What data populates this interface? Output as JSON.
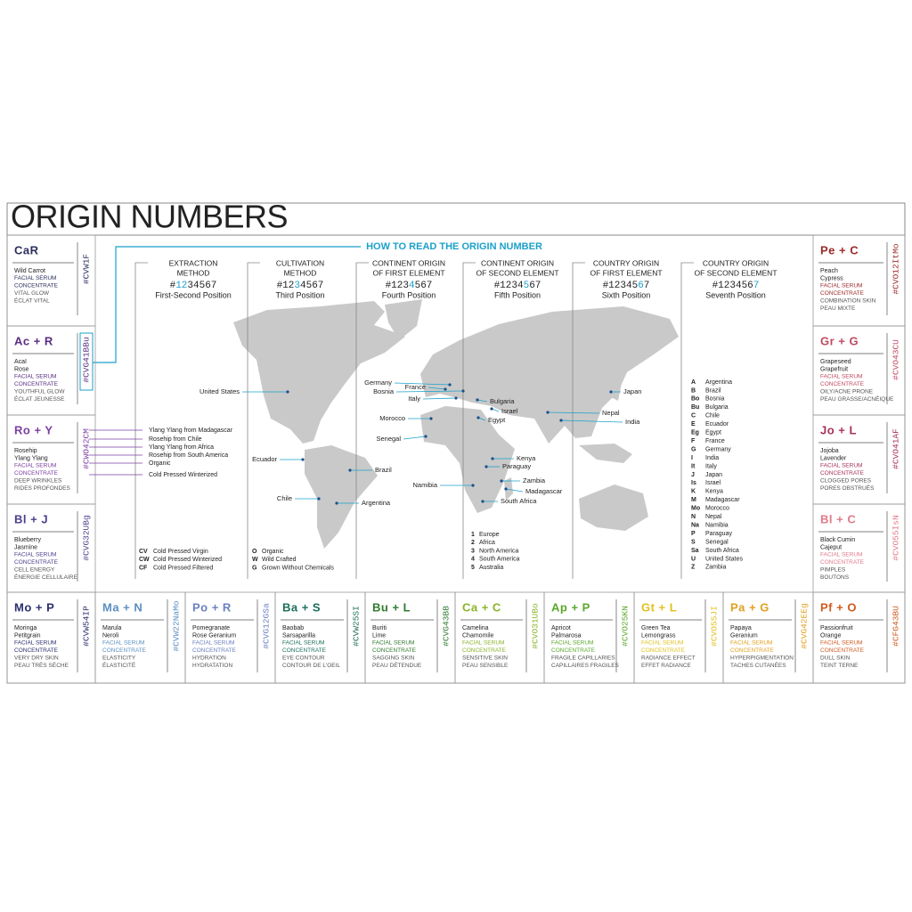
{
  "title": "ORIGIN NUMBERS",
  "how_to": "HOW TO READ THE ORIGIN NUMBER",
  "positions": [
    {
      "heading": [
        "EXTRACTION",
        "METHOD"
      ],
      "number_parts": [
        "#",
        "12",
        "34567"
      ],
      "label": "First-Second Position"
    },
    {
      "heading": [
        "CULTIVATION",
        "METHOD"
      ],
      "number_parts": [
        "#12",
        "3",
        "4567"
      ],
      "label": "Third Position"
    },
    {
      "heading": [
        "CONTINENT ORIGIN",
        "OF FIRST ELEMENT"
      ],
      "number_parts": [
        "#123",
        "4",
        "567"
      ],
      "label": "Fourth Position"
    },
    {
      "heading": [
        "CONTINENT ORIGIN",
        "OF SECOND ELEMENT"
      ],
      "number_parts": [
        "#1234",
        "5",
        "67"
      ],
      "label": "Fifth Position"
    },
    {
      "heading": [
        "COUNTRY ORIGIN",
        "OF FIRST ELEMENT"
      ],
      "number_parts": [
        "#12345",
        "6",
        "7"
      ],
      "label": "Sixth Position"
    },
    {
      "heading": [
        "COUNTRY ORIGIN",
        "OF SECOND ELEMENT"
      ],
      "number_parts": [
        "#123456",
        "7"
      ],
      "label": "Seventh Position"
    }
  ],
  "highlight_color": "#1ba1c9",
  "left_cards": [
    {
      "code": "CaR",
      "tag": "#CVW1F",
      "color": "#2b2f5e",
      "names": [
        "Wild Carrot"
      ],
      "serum": [
        "FACIAL SERUM",
        "CONCENTRATE"
      ],
      "benefits": [
        "VITAL GLOW",
        "ÉCLAT VITAL"
      ]
    },
    {
      "code": "Ac + R",
      "tag": "#CVG41BBu",
      "color": "#5a2d82",
      "names": [
        "Acaï",
        "Rose"
      ],
      "serum": [
        "FACIAL SERUM",
        "CONCENTRATE"
      ],
      "benefits": [
        "YOUTHFUL GLOW",
        "ÉCLAT JEUNESSE"
      ]
    },
    {
      "code": "Ro + Y",
      "tag": "#CWO42CM",
      "color": "#7b3fa0",
      "names": [
        "Rosehip",
        "Ylang Ylang"
      ],
      "serum": [
        "FACIAL SERUM",
        "CONCENTRATE"
      ],
      "benefits": [
        "DEEP WRINKLES",
        "RIDES PROFONDES"
      ]
    },
    {
      "code": "Bl + J",
      "tag": "#CVG32UBg",
      "color": "#4a3f8c",
      "names": [
        "Blueberry",
        "Jasmine"
      ],
      "serum": [
        "FACIAL SERUM",
        "CONCENTRATE"
      ],
      "benefits": [
        "CELL ENERGY",
        "ÉNERGIE CELLULAIRE"
      ]
    }
  ],
  "right_cards": [
    {
      "code": "Pe + C",
      "tag": "#CVO12ItMo",
      "color": "#9c2a2a",
      "names": [
        "Peach",
        "Cypress"
      ],
      "serum": [
        "FACIAL SERUM",
        "CONCENTRATE"
      ],
      "benefits": [
        "COMBINATION SKIN",
        "PEAU MIXTE"
      ]
    },
    {
      "code": "Gr + G",
      "tag": "#CVO43CU",
      "color": "#c04a60",
      "names": [
        "Grapeseed",
        "Grapefruit"
      ],
      "serum": [
        "FACIAL SERUM",
        "CONCENTRATE"
      ],
      "benefits": [
        "OILY/ACNE PRONE",
        "PEAU GRASSE/ACNÉIQUE"
      ]
    },
    {
      "code": "Jo + L",
      "tag": "#CVO41AF",
      "color": "#a8325a",
      "names": [
        "Jojoba",
        "Lavender"
      ],
      "serum": [
        "FACIAL SERUM",
        "CONCENTRATE"
      ],
      "benefits": [
        "CLOGGED PORES",
        "PORES OBSTRUÉS"
      ]
    },
    {
      "code": "Bl + C",
      "tag": "#CVO55IsN",
      "color": "#e07a8a",
      "names": [
        "Black Cumin",
        "Cajeput"
      ],
      "serum": [
        "FACIAL SERUM",
        "CONCENTRATE"
      ],
      "benefits": [
        "PIMPLES",
        "BOUTONS"
      ]
    }
  ],
  "bottom_cards": [
    {
      "code": "Mo + P",
      "tag": "#CVW54IP",
      "color": "#2b2f6e",
      "names": [
        "Moringa",
        "Petitgrain"
      ],
      "serum": [
        "FACIAL SERUM",
        "CONCENTRATE"
      ],
      "benefits": [
        "VERY DRY SKIN",
        "PEAU TRÈS SÈCHE"
      ]
    },
    {
      "code": "Ma + N",
      "tag": "#CVW22NaMo",
      "color": "#5b8fc0",
      "names": [
        "Marula",
        "Neroli"
      ],
      "serum": [
        "FACIAL SERUM",
        "CONCENTRATE"
      ],
      "benefits": [
        "ELASTICITY",
        "ÉLASTICITÉ"
      ]
    },
    {
      "code": "Po + R",
      "tag": "#CVG12GSa",
      "color": "#6a7fc0",
      "names": [
        "Pomegranate",
        "Rose Geranium"
      ],
      "serum": [
        "FACIAL SERUM",
        "CONCENTRATE"
      ],
      "benefits": [
        "HYDRATION",
        "HYDRATATION"
      ]
    },
    {
      "code": "Ba + S",
      "tag": "#CVW25SI",
      "color": "#1e6e5a",
      "names": [
        "Baobab",
        "Sarsaparilla"
      ],
      "serum": [
        "FACIAL SERUM",
        "CONCENTRATE"
      ],
      "benefits": [
        "EYE CONTOUR",
        "CONTOUR DE L'OEIL"
      ]
    },
    {
      "code": "Bu + L",
      "tag": "#CVG43BB",
      "color": "#2f7a2f",
      "names": [
        "Buriti",
        "Lime"
      ],
      "serum": [
        "FACIAL SERUM",
        "CONCENTRATE"
      ],
      "benefits": [
        "SAGGING SKIN",
        "PEAU DÉTENDUE"
      ]
    },
    {
      "code": "Ca + C",
      "tag": "#CVO31UBo",
      "color": "#8ab42a",
      "names": [
        "Camelina",
        "Chamomile"
      ],
      "serum": [
        "FACIAL SERUM",
        "CONCENTRATE"
      ],
      "benefits": [
        "SENSITIVE SKIN",
        "PEAU SENSIBLE"
      ]
    },
    {
      "code": "Ap + P",
      "tag": "#CVO25KN",
      "color": "#5aa82a",
      "names": [
        "Apricot",
        "Palmarosa"
      ],
      "serum": [
        "FACIAL SERUM",
        "CONCENTRATE"
      ],
      "benefits": [
        "FRAGILE CAPILLARIES",
        "CAPILLAIRES FRAGILES"
      ]
    },
    {
      "code": "Gt + L",
      "tag": "#CVO55JI",
      "color": "#e0c020",
      "names": [
        "Green Tea",
        "Lemongrass"
      ],
      "serum": [
        "FACIAL SERUM",
        "CONCENTRATE"
      ],
      "benefits": [
        "RADIANCE EFFECT",
        "EFFET RADIANCE"
      ]
    },
    {
      "code": "Pa + G",
      "tag": "#CVG42EEg",
      "color": "#e0a020",
      "names": [
        "Papaya",
        "Geranium"
      ],
      "serum": [
        "FACIAL SERUM",
        "CONCENTRATE"
      ],
      "benefits": [
        "HYPERPIGMENTATION",
        "TACHES CUTANÉES"
      ]
    },
    {
      "code": "Pf + O",
      "tag": "#CFG43BU",
      "color": "#d05a20",
      "names": [
        "Passionfruit",
        "Orange"
      ],
      "serum": [
        "FACIAL SERUM",
        "CONCENTRATE"
      ],
      "benefits": [
        "DULL SKIN",
        "TEINT TERNE"
      ]
    }
  ],
  "callouts": [
    "Ylang Ylang from Madagascar",
    "Rosehip from Chile",
    "Ylang Ylang from Africa",
    "Rosehip from South America",
    "Organic",
    "Cold Pressed Winterized"
  ],
  "legends": {
    "extraction": [
      {
        "key": "CV",
        "label": "Cold Pressed Virgin"
      },
      {
        "key": "CW",
        "label": "Cold Pressed Winterized"
      },
      {
        "key": "CF",
        "label": "Cold Pressed Filtered"
      }
    ],
    "cultivation": [
      {
        "key": "O",
        "label": "Organic"
      },
      {
        "key": "W",
        "label": "Wild Crafted"
      },
      {
        "key": "G",
        "label": "Grown Without Chemicals"
      }
    ],
    "continent": [
      {
        "key": "1",
        "label": "Europe"
      },
      {
        "key": "2",
        "label": "Africa"
      },
      {
        "key": "3",
        "label": "North America"
      },
      {
        "key": "4",
        "label": "South America"
      },
      {
        "key": "5",
        "label": "Australia"
      }
    ],
    "country": [
      {
        "key": "A",
        "label": "Argentina"
      },
      {
        "key": "B",
        "label": "Brazil"
      },
      {
        "key": "Bo",
        "label": "Bosnia"
      },
      {
        "key": "Bu",
        "label": "Bulgaria"
      },
      {
        "key": "C",
        "label": "Chile"
      },
      {
        "key": "E",
        "label": "Ecuador"
      },
      {
        "key": "Eg",
        "label": "Egypt"
      },
      {
        "key": "F",
        "label": "France"
      },
      {
        "key": "G",
        "label": "Germany"
      },
      {
        "key": "I",
        "label": "India"
      },
      {
        "key": "It",
        "label": "Italy"
      },
      {
        "key": "J",
        "label": "Japan"
      },
      {
        "key": "Is",
        "label": "Israel"
      },
      {
        "key": "K",
        "label": "Kenya"
      },
      {
        "key": "M",
        "label": "Madagascar"
      },
      {
        "key": "Mo",
        "label": "Morocco"
      },
      {
        "key": "N",
        "label": "Nepal"
      },
      {
        "key": "Na",
        "label": "Namibia"
      },
      {
        "key": "P",
        "label": "Paraguay"
      },
      {
        "key": "S",
        "label": "Senegal"
      },
      {
        "key": "Sa",
        "label": "South Africa"
      },
      {
        "key": "U",
        "label": "United States"
      },
      {
        "key": "Z",
        "label": "Zambia"
      }
    ]
  },
  "map_labels": [
    "United States",
    "Germany",
    "France",
    "Bosnia",
    "Italy",
    "Bulgaria",
    "Israel",
    "Egypt",
    "Morocco",
    "Senegal",
    "Japan",
    "Nepal",
    "India",
    "Kenya",
    "Paraguay",
    "Zambia",
    "Madagascar",
    "South Africa",
    "Namibia",
    "Ecuador",
    "Brazil",
    "Chile",
    "Argentina"
  ]
}
